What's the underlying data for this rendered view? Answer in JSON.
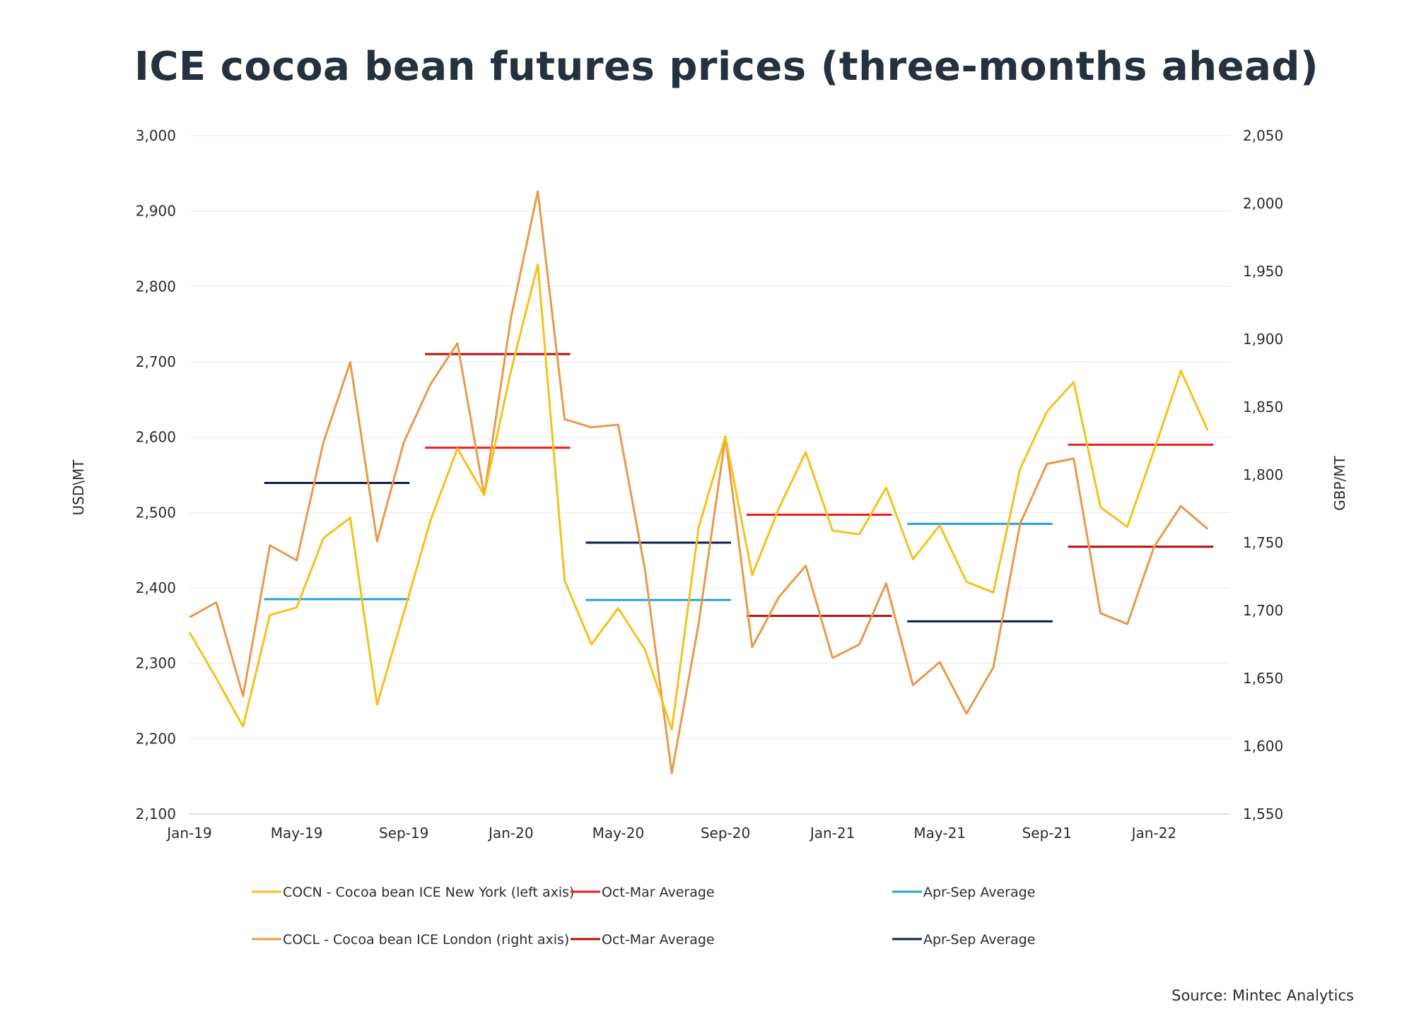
{
  "title": "ICE cocoa bean futures prices (three-months ahead)",
  "source": "Source: Mintec Analytics",
  "chart_data": {
    "type": "line",
    "title": "ICE cocoa bean futures prices (three-months ahead)",
    "x_tick_labels": [
      "Jan-19",
      "May-19",
      "Sep-19",
      "Jan-20",
      "May-20",
      "Sep-20",
      "Jan-21",
      "May-21",
      "Sep-21",
      "Jan-22"
    ],
    "y_left": {
      "label": "USD\\MT",
      "min": 2100,
      "max": 3000,
      "ticks": [
        "2,100",
        "2,200",
        "2,300",
        "2,400",
        "2,500",
        "2,600",
        "2,700",
        "2,800",
        "2,900",
        "3,000"
      ]
    },
    "y_right": {
      "label": "GBP/MT",
      "min": 1550,
      "max": 2050,
      "ticks": [
        "1,550",
        "1,600",
        "1,650",
        "1,700",
        "1,750",
        "1,800",
        "1,850",
        "1,900",
        "1,950",
        "2,000",
        "2,050"
      ]
    },
    "grid": true,
    "legend_position": "bottom",
    "x": [
      "Jan-19",
      "Feb-19",
      "Mar-19",
      "Apr-19",
      "May-19",
      "Jun-19",
      "Jul-19",
      "Aug-19",
      "Sep-19",
      "Oct-19",
      "Nov-19",
      "Dec-19",
      "Jan-20",
      "Feb-20",
      "Mar-20",
      "Apr-20",
      "May-20",
      "Jun-20",
      "Jul-20",
      "Aug-20",
      "Sep-20",
      "Oct-20",
      "Nov-20",
      "Dec-20",
      "Jan-21",
      "Feb-21",
      "Mar-21",
      "Apr-21",
      "May-21",
      "Jun-21",
      "Jul-21",
      "Aug-21",
      "Sep-21",
      "Oct-21",
      "Nov-21",
      "Dec-21",
      "Jan-22",
      "Feb-22",
      "Mar-22"
    ],
    "series": [
      {
        "name": "COCN - Cocoa bean ICE New York (left axis)",
        "axis": "left",
        "color": "#f5c21b",
        "values": [
          2341,
          2280,
          2216,
          2364,
          2374,
          2466,
          2493,
          2245,
          2367,
          2490,
          2585,
          2523,
          2688,
          2829,
          2410,
          2325,
          2373,
          2318,
          2212,
          2480,
          2601,
          2417,
          2506,
          2580,
          2476,
          2471,
          2533,
          2438,
          2483,
          2408,
          2394,
          2558,
          2634,
          2673,
          2507,
          2481,
          2583,
          2688,
          2609
        ]
      },
      {
        "name": "COCL - Cocoa bean ICE London (right axis)",
        "axis": "right",
        "color": "#e89a4a",
        "values": [
          1695,
          1706,
          1637,
          1748,
          1737,
          1824,
          1883,
          1751,
          1824,
          1867,
          1897,
          1785,
          1916,
          2009,
          1841,
          1835,
          1837,
          1730,
          1580,
          1690,
          1828,
          1673,
          1710,
          1733,
          1665,
          1675,
          1720,
          1645,
          1662,
          1624,
          1658,
          1764,
          1808,
          1812,
          1698,
          1690,
          1747,
          1777,
          1760
        ]
      }
    ],
    "averages": [
      {
        "name": "Oct-Mar Average",
        "axis": "left",
        "color": "#e8201d",
        "segments": [
          {
            "from": "Oct-19",
            "to": "Mar-20",
            "value": 2586
          },
          {
            "from": "Oct-20",
            "to": "Mar-21",
            "value": 2497
          },
          {
            "from": "Oct-21",
            "to": "Mar-22",
            "value": 2590
          }
        ]
      },
      {
        "name": "Oct-Mar Average",
        "axis": "right",
        "color": "#b30f0f",
        "segments": [
          {
            "from": "Oct-19",
            "to": "Mar-20",
            "value": 1889
          },
          {
            "from": "Oct-20",
            "to": "Mar-21",
            "value": 1696
          },
          {
            "from": "Oct-21",
            "to": "Mar-22",
            "value": 1747
          }
        ]
      },
      {
        "name": "Apr-Sep Average",
        "axis": "left",
        "color": "#2b9fd8",
        "segments": [
          {
            "from": "Apr-19",
            "to": "Sep-19",
            "value": 2385
          },
          {
            "from": "Apr-20",
            "to": "Sep-20",
            "value": 2384
          },
          {
            "from": "Apr-21",
            "to": "Sep-21",
            "value": 2485
          }
        ]
      },
      {
        "name": "Apr-Sep Average",
        "axis": "right",
        "color": "#0d1e4e",
        "segments": [
          {
            "from": "Apr-19",
            "to": "Sep-19",
            "value": 1794
          },
          {
            "from": "Apr-20",
            "to": "Sep-20",
            "value": 1750
          },
          {
            "from": "Apr-21",
            "to": "Sep-21",
            "value": 1692
          }
        ]
      }
    ],
    "legend": [
      {
        "label": "COCN - Cocoa bean ICE New York (left axis)",
        "color": "#f5c21b"
      },
      {
        "label": "Oct-Mar Average",
        "color": "#e8201d"
      },
      {
        "label": "Apr-Sep Average",
        "color": "#2b9fd8"
      },
      {
        "label": "COCL - Cocoa bean ICE London (right axis)",
        "color": "#e89a4a"
      },
      {
        "label": "Oct-Mar Average",
        "color": "#b30f0f"
      },
      {
        "label": "Apr-Sep Average",
        "color": "#0d1e4e"
      }
    ]
  }
}
